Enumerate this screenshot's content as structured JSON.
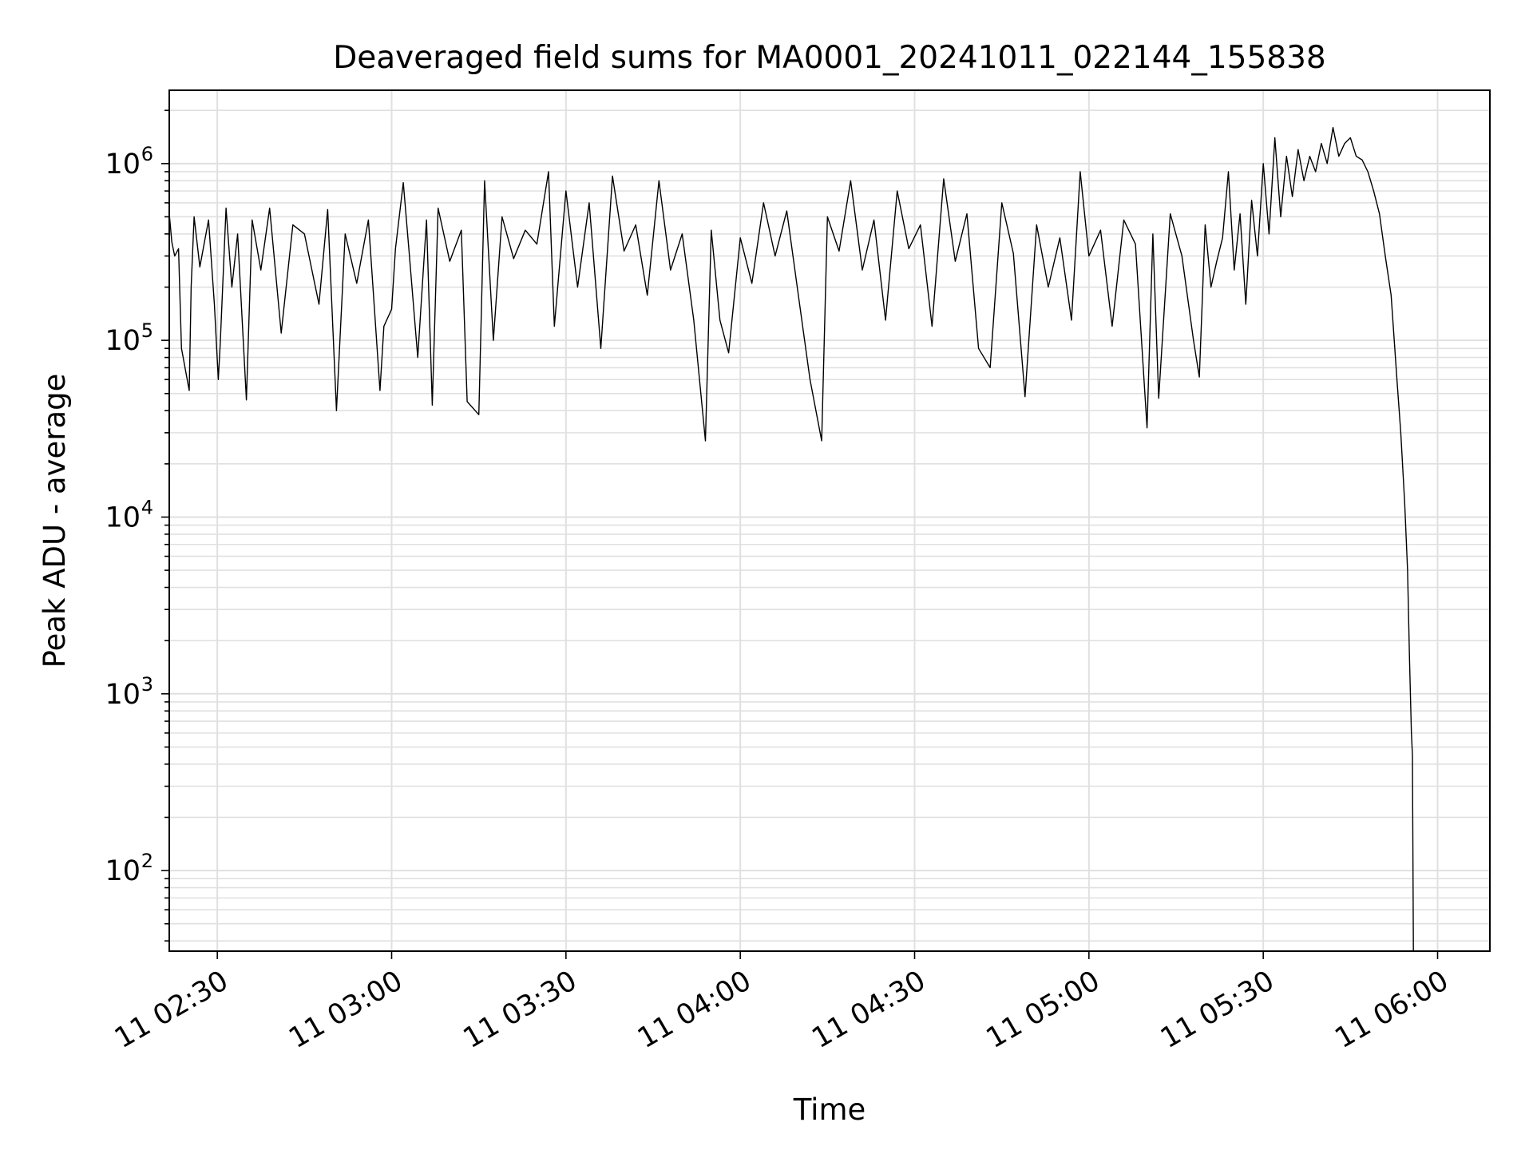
{
  "chart_data": {
    "type": "line",
    "title": "Deaveraged field sums for MA0001_20241011_022144_155838",
    "xlabel": "Time",
    "ylabel": "Peak ADU - average",
    "yscale": "log",
    "xlim": [
      "11 02:21:44",
      "11 06:09:00"
    ],
    "ylim": [
      35,
      2600000
    ],
    "grid": true,
    "line_color": "#000000",
    "grid_color": "#e0e0e0",
    "legend": "none",
    "x_ticks": [
      "11 02:30",
      "11 03:00",
      "11 03:30",
      "11 04:00",
      "11 04:30",
      "11 05:00",
      "11 05:30",
      "11 06:00"
    ],
    "y_ticks": [
      {
        "base": "10",
        "exp": "2",
        "value": 100
      },
      {
        "base": "10",
        "exp": "3",
        "value": 1000
      },
      {
        "base": "10",
        "exp": "4",
        "value": 10000
      },
      {
        "base": "10",
        "exp": "5",
        "value": 100000
      },
      {
        "base": "10",
        "exp": "6",
        "value": 1000000
      }
    ],
    "series": [
      {
        "values": [
          [
            "11 02:21:44",
            520000
          ],
          [
            "11 02:22:10",
            360000
          ],
          [
            "11 02:22:40",
            300000
          ],
          [
            "11 02:23:20",
            330000
          ],
          [
            "11 02:23:50",
            90000
          ],
          [
            "11 02:25:10",
            52000
          ],
          [
            "11 02:25:30",
            200000
          ],
          [
            "11 02:26:00",
            500000
          ],
          [
            "11 02:27:00",
            260000
          ],
          [
            "11 02:28:30",
            480000
          ],
          [
            "11 02:29:30",
            160000
          ],
          [
            "11 02:30:10",
            60000
          ],
          [
            "11 02:30:30",
            95000
          ],
          [
            "11 02:31:30",
            560000
          ],
          [
            "11 02:32:30",
            200000
          ],
          [
            "11 02:33:30",
            400000
          ],
          [
            "11 02:35:00",
            46000
          ],
          [
            "11 02:36:00",
            480000
          ],
          [
            "11 02:37:30",
            250000
          ],
          [
            "11 02:39:00",
            560000
          ],
          [
            "11 02:41:00",
            110000
          ],
          [
            "11 02:43:00",
            450000
          ],
          [
            "11 02:45:00",
            400000
          ],
          [
            "11 02:47:30",
            160000
          ],
          [
            "11 02:49:00",
            550000
          ],
          [
            "11 02:50:30",
            40000
          ],
          [
            "11 02:52:00",
            400000
          ],
          [
            "11 02:54:00",
            210000
          ],
          [
            "11 02:56:00",
            480000
          ],
          [
            "11 02:58:00",
            52000
          ],
          [
            "11 02:58:40",
            120000
          ],
          [
            "11 03:00:00",
            150000
          ],
          [
            "11 03:00:40",
            330000
          ],
          [
            "11 03:02:00",
            780000
          ],
          [
            "11 03:03:00",
            320000
          ],
          [
            "11 03:04:30",
            80000
          ],
          [
            "11 03:06:00",
            480000
          ],
          [
            "11 03:07:00",
            43000
          ],
          [
            "11 03:08:00",
            560000
          ],
          [
            "11 03:10:00",
            280000
          ],
          [
            "11 03:12:00",
            420000
          ],
          [
            "11 03:13:00",
            45000
          ],
          [
            "11 03:15:00",
            38000
          ],
          [
            "11 03:16:00",
            800000
          ],
          [
            "11 03:17:30",
            100000
          ],
          [
            "11 03:19:00",
            500000
          ],
          [
            "11 03:21:00",
            290000
          ],
          [
            "11 03:23:00",
            420000
          ],
          [
            "11 03:25:00",
            350000
          ],
          [
            "11 03:27:00",
            900000
          ],
          [
            "11 03:28:00",
            120000
          ],
          [
            "11 03:30:00",
            700000
          ],
          [
            "11 03:32:00",
            200000
          ],
          [
            "11 03:34:00",
            600000
          ],
          [
            "11 03:36:00",
            90000
          ],
          [
            "11 03:38:00",
            850000
          ],
          [
            "11 03:40:00",
            320000
          ],
          [
            "11 03:42:00",
            450000
          ],
          [
            "11 03:44:00",
            180000
          ],
          [
            "11 03:46:00",
            800000
          ],
          [
            "11 03:48:00",
            250000
          ],
          [
            "11 03:50:00",
            400000
          ],
          [
            "11 03:52:00",
            130000
          ],
          [
            "11 03:54:00",
            27000
          ],
          [
            "11 03:55:00",
            420000
          ],
          [
            "11 03:56:30",
            130000
          ],
          [
            "11 03:58:00",
            85000
          ],
          [
            "11 04:00:00",
            380000
          ],
          [
            "11 04:02:00",
            210000
          ],
          [
            "11 04:04:00",
            600000
          ],
          [
            "11 04:06:00",
            300000
          ],
          [
            "11 04:08:00",
            540000
          ],
          [
            "11 04:10:00",
            180000
          ],
          [
            "11 04:12:00",
            60000
          ],
          [
            "11 04:14:00",
            27000
          ],
          [
            "11 04:15:00",
            500000
          ],
          [
            "11 04:17:00",
            320000
          ],
          [
            "11 04:19:00",
            800000
          ],
          [
            "11 04:21:00",
            250000
          ],
          [
            "11 04:23:00",
            480000
          ],
          [
            "11 04:25:00",
            130000
          ],
          [
            "11 04:27:00",
            700000
          ],
          [
            "11 04:29:00",
            330000
          ],
          [
            "11 04:31:00",
            450000
          ],
          [
            "11 04:33:00",
            120000
          ],
          [
            "11 04:35:00",
            820000
          ],
          [
            "11 04:37:00",
            280000
          ],
          [
            "11 04:39:00",
            520000
          ],
          [
            "11 04:41:00",
            90000
          ],
          [
            "11 04:43:00",
            70000
          ],
          [
            "11 04:45:00",
            600000
          ],
          [
            "11 04:47:00",
            310000
          ],
          [
            "11 04:49:00",
            48000
          ],
          [
            "11 04:51:00",
            450000
          ],
          [
            "11 04:53:00",
            200000
          ],
          [
            "11 04:55:00",
            380000
          ],
          [
            "11 04:57:00",
            130000
          ],
          [
            "11 04:58:30",
            900000
          ],
          [
            "11 05:00:00",
            300000
          ],
          [
            "11 05:02:00",
            420000
          ],
          [
            "11 05:04:00",
            120000
          ],
          [
            "11 05:06:00",
            480000
          ],
          [
            "11 05:08:00",
            350000
          ],
          [
            "11 05:10:00",
            32000
          ],
          [
            "11 05:11:00",
            400000
          ],
          [
            "11 05:12:00",
            47000
          ],
          [
            "11 05:14:00",
            520000
          ],
          [
            "11 05:16:00",
            300000
          ],
          [
            "11 05:18:00",
            100000
          ],
          [
            "11 05:19:00",
            62000
          ],
          [
            "11 05:20:00",
            450000
          ],
          [
            "11 05:21:00",
            200000
          ],
          [
            "11 05:22:00",
            280000
          ],
          [
            "11 05:23:00",
            380000
          ],
          [
            "11 05:24:00",
            900000
          ],
          [
            "11 05:25:00",
            250000
          ],
          [
            "11 05:26:00",
            520000
          ],
          [
            "11 05:27:00",
            160000
          ],
          [
            "11 05:28:00",
            620000
          ],
          [
            "11 05:29:00",
            300000
          ],
          [
            "11 05:30:00",
            1000000
          ],
          [
            "11 05:31:00",
            400000
          ],
          [
            "11 05:32:00",
            1400000
          ],
          [
            "11 05:33:00",
            500000
          ],
          [
            "11 05:34:00",
            1100000
          ],
          [
            "11 05:35:00",
            650000
          ],
          [
            "11 05:36:00",
            1200000
          ],
          [
            "11 05:37:00",
            800000
          ],
          [
            "11 05:38:00",
            1100000
          ],
          [
            "11 05:39:00",
            900000
          ],
          [
            "11 05:40:00",
            1300000
          ],
          [
            "11 05:41:00",
            1000000
          ],
          [
            "11 05:42:00",
            1600000
          ],
          [
            "11 05:43:00",
            1100000
          ],
          [
            "11 05:44:00",
            1300000
          ],
          [
            "11 05:45:00",
            1400000
          ],
          [
            "11 05:46:00",
            1100000
          ],
          [
            "11 05:47:00",
            1050000
          ],
          [
            "11 05:48:00",
            900000
          ],
          [
            "11 05:49:00",
            700000
          ],
          [
            "11 05:50:00",
            520000
          ],
          [
            "11 05:51:00",
            300000
          ],
          [
            "11 05:52:00",
            180000
          ],
          [
            "11 05:53:00",
            60000
          ],
          [
            "11 05:53:40",
            30000
          ],
          [
            "11 05:54:20",
            12000
          ],
          [
            "11 05:54:50",
            5000
          ],
          [
            "11 05:55:10",
            1600
          ],
          [
            "11 05:55:30",
            600
          ],
          [
            "11 05:55:40",
            450
          ],
          [
            "11 05:55:50",
            35
          ]
        ]
      }
    ]
  }
}
